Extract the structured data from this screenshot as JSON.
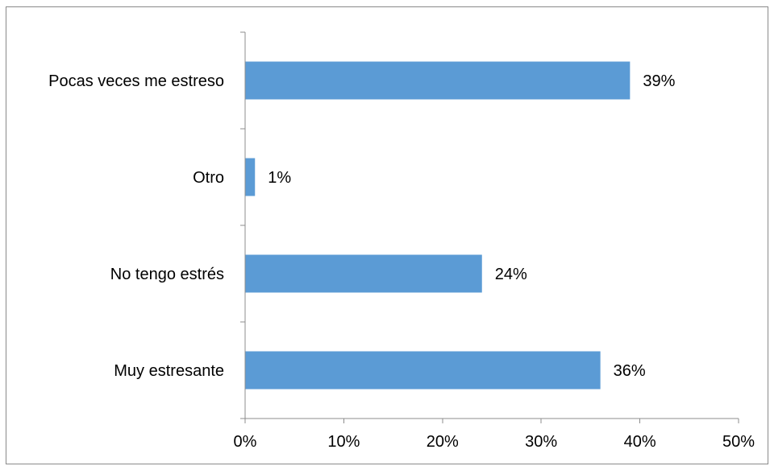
{
  "chart_data": {
    "type": "bar",
    "orientation": "horizontal",
    "categories": [
      "Pocas veces me estreso",
      "Otro",
      "No tengo estrés",
      "Muy estresante"
    ],
    "values": [
      39,
      1,
      24,
      36
    ],
    "data_labels": [
      "39%",
      "1%",
      "24%",
      "36%"
    ],
    "title": "",
    "xlabel": "",
    "ylabel": "",
    "xlim": [
      0,
      50
    ],
    "x_ticks": [
      0,
      10,
      20,
      30,
      40,
      50
    ],
    "x_tick_labels": [
      "0%",
      "10%",
      "20%",
      "30%",
      "40%",
      "50%"
    ],
    "grid": false,
    "legend": "none",
    "bar_color": "#5b9bd5"
  }
}
